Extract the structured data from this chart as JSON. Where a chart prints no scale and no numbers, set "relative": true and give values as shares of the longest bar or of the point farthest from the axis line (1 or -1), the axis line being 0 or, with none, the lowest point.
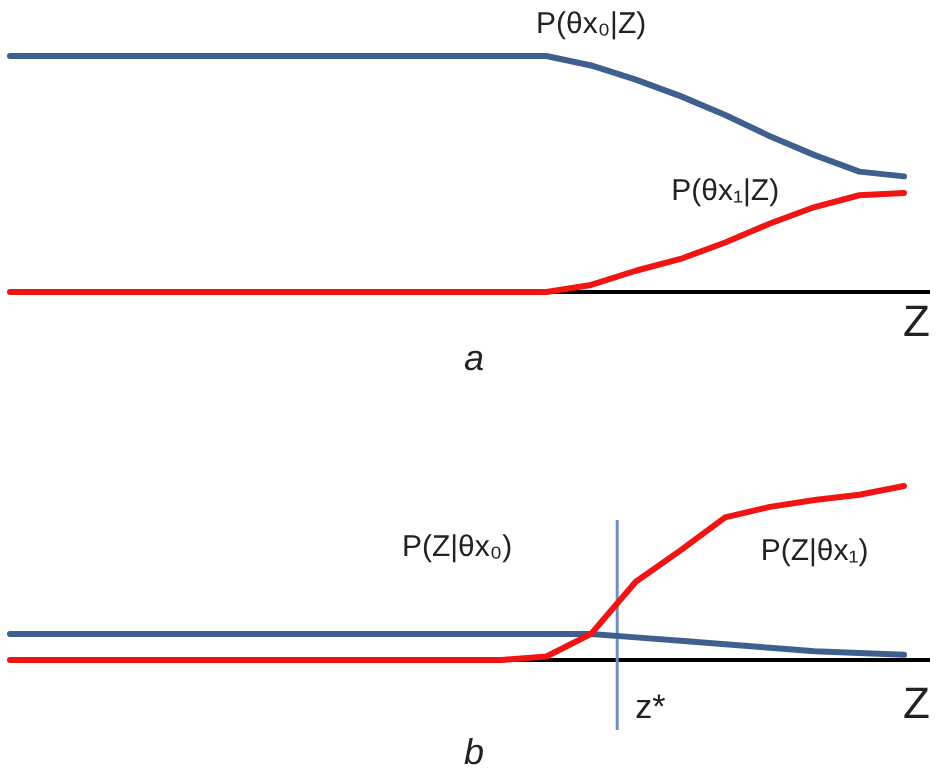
{
  "chart_data": [
    {
      "type": "line",
      "title": "a",
      "xlabel": "Z",
      "relative": true,
      "marker": "none",
      "line_style": "solid",
      "categories": [
        null,
        null,
        null,
        null,
        null,
        null,
        null,
        null,
        null,
        null,
        null,
        null,
        null,
        null,
        null,
        null,
        null,
        null,
        null,
        null,
        null
      ],
      "series": [
        {
          "name": "P(θx₀|Z)",
          "color": "#3f5f8e",
          "values": [
            1,
            1,
            1,
            1,
            1,
            1,
            1,
            1,
            1,
            1,
            1,
            1,
            1,
            0.96,
            0.9,
            0.83,
            0.75,
            0.66,
            0.58,
            0.51,
            0.49
          ]
        },
        {
          "name": "P(θx₁|Z)",
          "color": "#f01414",
          "values": [
            0,
            0,
            0,
            0,
            0,
            0,
            0,
            0,
            0,
            0,
            0,
            0,
            0,
            0.03,
            0.09,
            0.14,
            0.21,
            0.29,
            0.36,
            0.41,
            0.42
          ]
        }
      ]
    },
    {
      "type": "line",
      "title": "b",
      "xlabel": "Z",
      "relative": true,
      "marker": "none",
      "line_style": "solid",
      "categories": [
        null,
        null,
        null,
        null,
        null,
        null,
        null,
        null,
        null,
        null,
        null,
        null,
        null,
        null,
        null,
        null,
        null,
        null,
        null,
        null,
        null
      ],
      "annotations": [
        "z*"
      ],
      "series": [
        {
          "name": "P(Z|θx₀)",
          "color": "#3f5f8e",
          "values": [
            0.15,
            0.15,
            0.15,
            0.15,
            0.15,
            0.15,
            0.15,
            0.15,
            0.15,
            0.15,
            0.15,
            0.15,
            0.15,
            0.15,
            0.13,
            0.11,
            0.09,
            0.07,
            0.05,
            0.04,
            0.03
          ]
        },
        {
          "name": "P(Z|θx₁)",
          "color": "#f01414",
          "values": [
            0,
            0,
            0,
            0,
            0,
            0,
            0,
            0,
            0,
            0,
            0,
            0,
            0.02,
            0.15,
            0.45,
            0.63,
            0.82,
            0.88,
            0.92,
            0.95,
            1
          ]
        }
      ]
    }
  ]
}
